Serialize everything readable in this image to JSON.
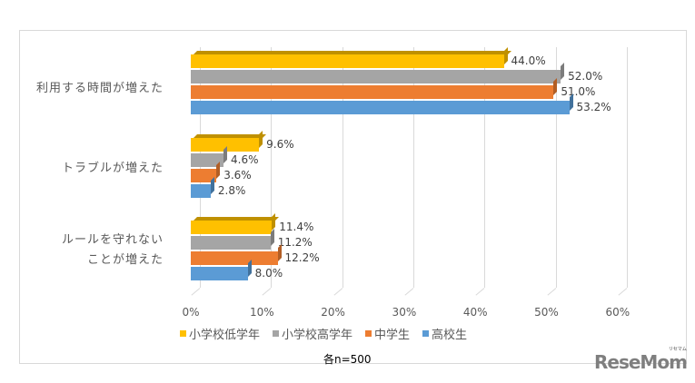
{
  "chart_data": {
    "type": "bar",
    "orientation": "horizontal",
    "style": "3d-clustered",
    "title": "",
    "categories": [
      "利用する時間が増えた",
      "トラブルが増えた",
      "ルールを守れないことが増えた"
    ],
    "category_labels": [
      [
        "利用する時間が増えた"
      ],
      [
        "トラブルが増えた"
      ],
      [
        "ルールを守れない",
        "ことが増えた"
      ]
    ],
    "series": [
      {
        "name": "小学校低学年",
        "color": "#ffc000",
        "values": [
          44.0,
          9.6,
          11.4
        ],
        "labels": [
          "44.0%",
          "9.6%",
          "11.4%"
        ]
      },
      {
        "name": "小学校高学年",
        "color": "#a5a5a5",
        "values": [
          52.0,
          4.6,
          11.2
        ],
        "labels": [
          "52.0%",
          "4.6%",
          "11.2%"
        ]
      },
      {
        "name": "中学生",
        "color": "#ed7d31",
        "values": [
          51.0,
          3.6,
          12.2
        ],
        "labels": [
          "51.0%",
          "3.6%",
          "12.2%"
        ]
      },
      {
        "name": "高校生",
        "color": "#5b9bd5",
        "values": [
          53.2,
          2.8,
          8.0
        ],
        "labels": [
          "53.2%",
          "2.8%",
          "8.0%"
        ]
      }
    ],
    "xlabel": "",
    "ylabel": "",
    "xlim": [
      0,
      60
    ],
    "x_ticks": [
      "0%",
      "10%",
      "20%",
      "30%",
      "40%",
      "50%",
      "60%"
    ],
    "grid": true,
    "legend_position": "bottom",
    "annotation": "各n=500"
  },
  "footer": {
    "note": "各n=500",
    "logo": "ReseMom",
    "logo_sub": "リセマム"
  }
}
